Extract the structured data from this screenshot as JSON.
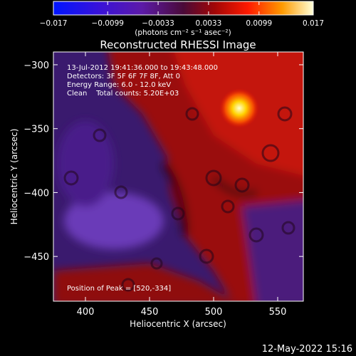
{
  "figure": {
    "title": "Reconstructed RHESSI Image",
    "info_lines": [
      "13-Jul-2012 19:41:36.000 to 19:43:48.000",
      "Detectors: 3F 5F 6F 7F 8F, Att 0",
      "Energy Range: 6.0 - 12.0 keV",
      "Clean    Total counts: 5.20E+03"
    ],
    "peak_label": "Position of Peak = [520,-334]",
    "footer_date": "12-May-2022 15:16"
  },
  "chart_data": {
    "type": "heatmap",
    "title": "Reconstructed RHESSI Image",
    "xlabel": "Heliocentric X (arcsec)",
    "ylabel": "Heliocentric Y (arcsec)",
    "xlim": [
      375,
      570
    ],
    "ylim": [
      -290,
      -485
    ],
    "x_ticks": [
      400,
      450,
      500,
      550
    ],
    "y_ticks": [
      -300,
      -350,
      -400,
      -450
    ],
    "peak": {
      "x": 520,
      "y": -334
    },
    "colorbar": {
      "min": -0.017,
      "max": 0.017,
      "tick_values": [
        -0.017,
        -0.0099,
        -0.0033,
        0.0033,
        0.0099,
        0.017
      ],
      "tick_labels": [
        "−0.017",
        "−0.0099",
        "−0.0033",
        "0.0033",
        "0.0099",
        "0.017"
      ],
      "units_label": "(photons cm⁻² s⁻¹ asec⁻²)"
    },
    "palette": [
      "#0000ff",
      "#6a0dad",
      "#8b0000",
      "#ff0000",
      "#ffa500",
      "#ffffff"
    ]
  }
}
